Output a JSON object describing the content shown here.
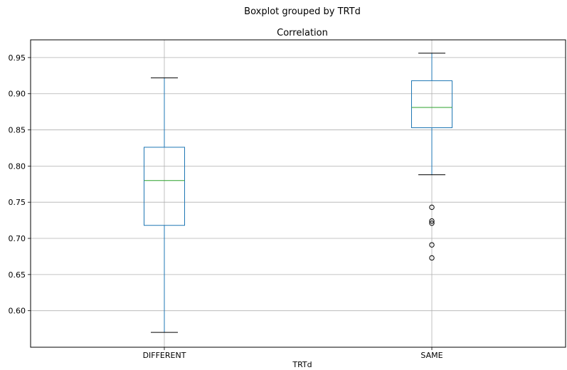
{
  "chart_data": {
    "type": "box",
    "suptitle": "Boxplot grouped by TRTd",
    "title": "Correlation",
    "xlabel": "TRTd",
    "ylabel": "",
    "categories": [
      "DIFFERENT",
      "SAME"
    ],
    "boxes": [
      {
        "category": "DIFFERENT",
        "whisker_low": 0.57,
        "q1": 0.718,
        "median": 0.78,
        "q3": 0.826,
        "whisker_high": 0.922,
        "outliers": []
      },
      {
        "category": "SAME",
        "whisker_low": 0.788,
        "q1": 0.853,
        "median": 0.881,
        "q3": 0.918,
        "whisker_high": 0.956,
        "outliers": [
          0.743,
          0.724,
          0.721,
          0.691,
          0.673
        ]
      }
    ],
    "ylim": [
      0.5495,
      0.9745
    ],
    "yticks": [
      0.6,
      0.65,
      0.7,
      0.75,
      0.8,
      0.85,
      0.9,
      0.95
    ],
    "ytick_labels": [
      "0.60",
      "0.65",
      "0.70",
      "0.75",
      "0.80",
      "0.85",
      "0.90",
      "0.95"
    ],
    "grid": true,
    "legend": "none",
    "colors": {
      "box": "#1f77b4",
      "median": "#2ca02c",
      "cap": "#000000",
      "grid": "#b0b0b0",
      "outlier": "#000000"
    }
  }
}
